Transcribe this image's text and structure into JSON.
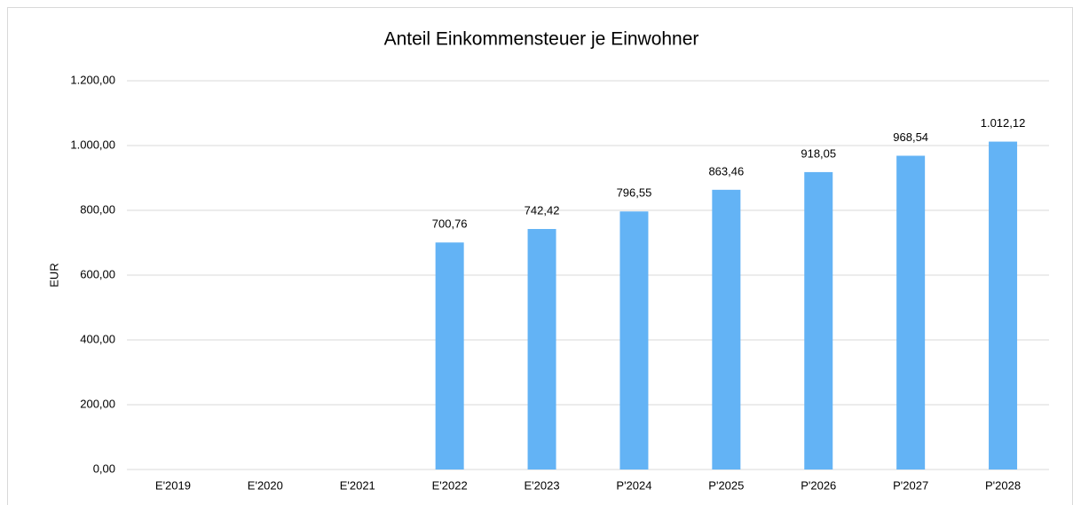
{
  "chart_data": {
    "type": "bar",
    "title": "Anteil Einkommensteuer je Einwohner",
    "y_label": "EUR",
    "categories": [
      "E'2019",
      "E'2020",
      "E'2021",
      "E'2022",
      "E'2023",
      "P'2024",
      "P'2025",
      "P'2026",
      "P'2027",
      "P'2028"
    ],
    "values": [
      null,
      null,
      null,
      700.76,
      742.42,
      796.55,
      863.46,
      918.05,
      968.54,
      1012.12
    ],
    "value_labels": [
      null,
      null,
      null,
      "700,76",
      "742,42",
      "796,55",
      "863,46",
      "918,05",
      "968,54",
      "1.012,12"
    ],
    "color": "#63b3f5",
    "ylim": [
      0,
      1200
    ],
    "yticks": [
      {
        "value": 0,
        "label": "0,00"
      },
      {
        "value": 200,
        "label": "200,00"
      },
      {
        "value": 400,
        "label": "400,00"
      },
      {
        "value": 600,
        "label": "600,00"
      },
      {
        "value": 800,
        "label": "800,00"
      },
      {
        "value": 1000,
        "label": "1.000,00"
      },
      {
        "value": 1200,
        "label": "1.200,00"
      }
    ],
    "grid": true
  }
}
